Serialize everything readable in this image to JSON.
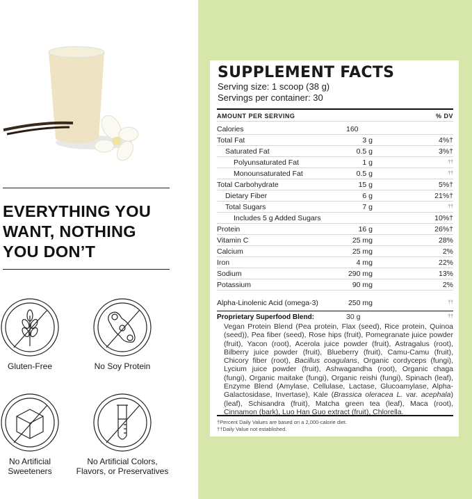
{
  "headline": [
    "EVERYTHING YOU",
    "WANT, NOTHING",
    "YOU DON’T"
  ],
  "badges": [
    {
      "icon": "no-wheat-icon",
      "label": "Gluten-Free"
    },
    {
      "icon": "no-soy-icon",
      "label": "No Soy Protein"
    },
    {
      "icon": "no-sugar-cube-icon",
      "label": "No Artificial Sweeteners"
    },
    {
      "icon": "no-test-tube-icon",
      "label": "No Artificial Colors, Flavors, or Preservatives"
    }
  ],
  "facts": {
    "title": "SUPPLEMENT FACTS",
    "serving_size": "Serving size: 1 scoop (38 g)",
    "servings_per_container": "Servings per container: 30",
    "header_amount": "AMOUNT PER SERVING",
    "header_dv": "% DV",
    "rows": [
      {
        "name": "Calories",
        "amount": "160",
        "dv": ""
      },
      {
        "name": "Total Fat",
        "amount": "3 g",
        "dv": "4%†"
      },
      {
        "name": "Saturated Fat",
        "amount": "0.5 g",
        "dv": "3%†"
      },
      {
        "name": "Polyunsaturated Fat",
        "amount": "1 g",
        "dv": "††"
      },
      {
        "name": "Monounsaturated Fat",
        "amount": "0.5 g",
        "dv": "††"
      },
      {
        "name": "Total Carbohydrate",
        "amount": "15 g",
        "dv": "5%†"
      },
      {
        "name": "Dietary Fiber",
        "amount": "6 g",
        "dv": "21%†"
      },
      {
        "name": "Total Sugars",
        "amount": "7 g",
        "dv": "††"
      },
      {
        "name": "Includes 5 g Added Sugars",
        "amount": "",
        "dv": "10%†"
      },
      {
        "name": "Protein",
        "amount": "16 g",
        "dv": "26%†"
      },
      {
        "name": "Vitamin C",
        "amount": "25 mg",
        "dv": "28%"
      },
      {
        "name": "Calcium",
        "amount": "25 mg",
        "dv": "2%"
      },
      {
        "name": "Iron",
        "amount": "4 mg",
        "dv": "22%"
      },
      {
        "name": "Sodium",
        "amount": "290 mg",
        "dv": "13%"
      },
      {
        "name": "Potassium",
        "amount": "90 mg",
        "dv": "2%"
      },
      {
        "name": "Alpha-Linolenic Acid (omega-3)",
        "amount": "250 mg",
        "dv": "††"
      }
    ],
    "blend": {
      "name": "Proprietary Superfood Blend:",
      "amount": "30 g",
      "dv": "††",
      "ingredients_1": "Vegan Protein Blend (Pea protein, Flax (seed), Rice protein, Quinoa (seed)), Pea fiber (seed), Rose hips (fruit), Pomegranate juice powder (fruit), Yacon (root), Acerola juice powder (fruit), Astragalus (root), Bilberry juice powder (fruit), Blueberry (fruit), Camu-Camu (fruit), Chicory fiber (root), ",
      "italic_1": "Bacillus coagulans",
      "ingredients_2": ", Organic cordyceps (fungi), Lycium juice powder (fruit), Ashwagandha (root), Organic chaga (fungi), Organic maitake (fungi), Organic reishi (fungi), Spinach (leaf), Enzyme Blend (Amylase, Cellulase, Lactase, Glucoamylase, Alpha-Galactosidase, Invertase), Kale (",
      "italic_2": "Brassica oleracea L.",
      "ingredients_3": " var. ",
      "italic_3": "acephala",
      "ingredients_4": ") (leaf), Schisandra (fruit), Matcha green tea (leaf), Maca (root), Cinnamon (bark), Luo Han Guo extract (fruit), Chlorella."
    },
    "footnote_1": "†Percent Daily Values are based on a 2,000-calorie diet.",
    "footnote_2": "††Daily Value not established."
  },
  "colors": {
    "panel_green": "#d7e6ab"
  }
}
